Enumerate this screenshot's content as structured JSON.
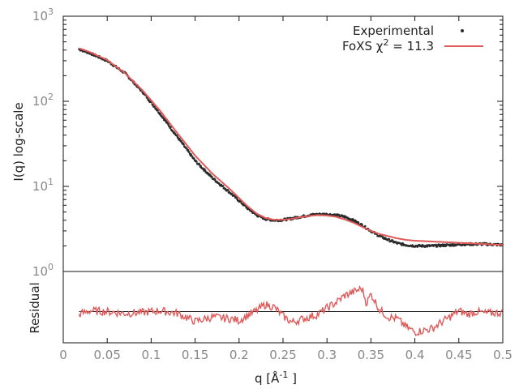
{
  "colors": {
    "experimental": "#2b2b2b",
    "fit": "#e05a5a",
    "residual": "#e05a5a",
    "zero_line": "#111111",
    "frame": "#111111",
    "tick_text": "#888888"
  },
  "legend": {
    "experimental_label": "Experimental",
    "fit_label_prefix": "FoXS χ",
    "fit_label_sup": "2",
    "fit_label_suffix": " = 11.3"
  },
  "axes": {
    "ylabel_main": "I(q) log-scale",
    "ylabel_residual": "Residual",
    "xlabel_prefix": "q [Å",
    "xlabel_sup": "-1",
    "xlabel_suffix": " ]"
  },
  "chart_data": {
    "type": "line",
    "title": "",
    "xlim": [
      0,
      0.5
    ],
    "ylim": [
      1,
      1000
    ],
    "yscale": "log",
    "grid": false,
    "legend_position": "top-right",
    "x_ticks": [
      "0",
      "0.05",
      "0.1",
      "0.15",
      "0.2",
      "0.25",
      "0.3",
      "0.35",
      "0.4",
      "0.45",
      "0.5"
    ],
    "y_ticks": [
      {
        "base": "10",
        "exp": "0"
      },
      {
        "base": "10",
        "exp": "1"
      },
      {
        "base": "10",
        "exp": "2"
      },
      {
        "base": "10",
        "exp": "3"
      }
    ],
    "experimental": {
      "name": "Experimental",
      "x": [
        0.018,
        0.03,
        0.05,
        0.07,
        0.09,
        0.11,
        0.13,
        0.15,
        0.17,
        0.19,
        0.2,
        0.21,
        0.22,
        0.23,
        0.24,
        0.25,
        0.26,
        0.27,
        0.28,
        0.29,
        0.3,
        0.31,
        0.32,
        0.33,
        0.34,
        0.35,
        0.36,
        0.37,
        0.38,
        0.39,
        0.4,
        0.42,
        0.44,
        0.46,
        0.48,
        0.5
      ],
      "y": [
        410,
        370,
        300,
        215,
        130,
        72,
        38,
        20,
        12.5,
        8.4,
        6.8,
        5.5,
        4.6,
        4.15,
        4.0,
        4.05,
        4.2,
        4.4,
        4.6,
        4.7,
        4.7,
        4.6,
        4.4,
        4.0,
        3.5,
        3.0,
        2.6,
        2.35,
        2.15,
        2.05,
        2.0,
        2.0,
        2.05,
        2.1,
        2.1,
        2.05
      ]
    },
    "fit": {
      "name": "FoXS χ2 = 11.3",
      "x": [
        0.018,
        0.03,
        0.05,
        0.07,
        0.09,
        0.11,
        0.13,
        0.15,
        0.17,
        0.19,
        0.2,
        0.21,
        0.22,
        0.23,
        0.24,
        0.25,
        0.26,
        0.27,
        0.28,
        0.29,
        0.3,
        0.31,
        0.32,
        0.33,
        0.34,
        0.35,
        0.36,
        0.37,
        0.38,
        0.39,
        0.4,
        0.42,
        0.44,
        0.46,
        0.48,
        0.5
      ],
      "y": [
        420,
        380,
        305,
        215,
        135,
        78,
        42,
        23,
        14,
        9.2,
        7.3,
        5.8,
        4.8,
        4.25,
        4.05,
        4.05,
        4.15,
        4.35,
        4.5,
        4.6,
        4.55,
        4.4,
        4.1,
        3.75,
        3.35,
        3.0,
        2.75,
        2.6,
        2.45,
        2.35,
        2.3,
        2.25,
        2.2,
        2.15,
        2.1,
        2.05
      ]
    },
    "residual": {
      "name": "Residual",
      "x": [
        0.018,
        0.03,
        0.05,
        0.07,
        0.09,
        0.11,
        0.13,
        0.15,
        0.17,
        0.19,
        0.2,
        0.21,
        0.22,
        0.23,
        0.24,
        0.25,
        0.26,
        0.27,
        0.28,
        0.29,
        0.3,
        0.31,
        0.32,
        0.33,
        0.34,
        0.345,
        0.35,
        0.36,
        0.37,
        0.38,
        0.39,
        0.4,
        0.41,
        0.42,
        0.43,
        0.44,
        0.45,
        0.46,
        0.47,
        0.48,
        0.5
      ],
      "y": [
        -0.3,
        0.1,
        0.0,
        -0.2,
        -0.1,
        0.1,
        -0.2,
        -1.1,
        -0.6,
        -0.8,
        -1.0,
        -0.4,
        0.1,
        0.8,
        0.5,
        -0.5,
        -1.2,
        -0.9,
        -0.6,
        -0.3,
        0.4,
        1.0,
        1.8,
        2.2,
        2.6,
        0.9,
        2.0,
        0.2,
        -0.6,
        -0.8,
        -1.7,
        -2.3,
        -2.1,
        -1.9,
        -1.2,
        -0.6,
        0.1,
        -0.3,
        0.0,
        -0.2,
        -0.1
      ],
      "ylim": [
        -3.5,
        4.5
      ]
    }
  }
}
